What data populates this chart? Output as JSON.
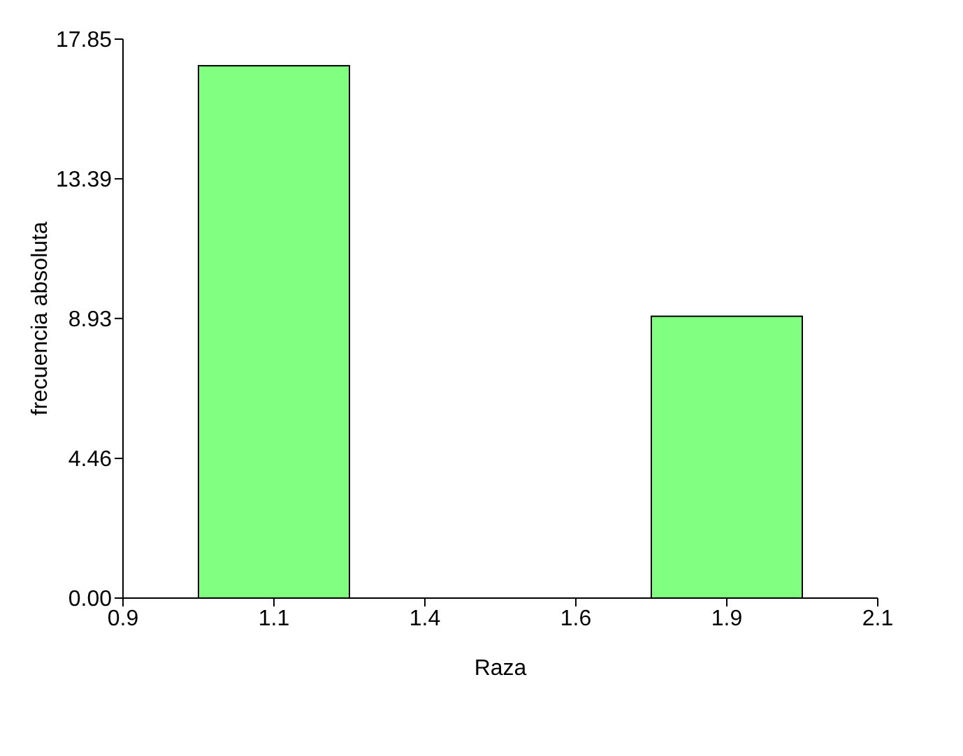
{
  "chart_data": {
    "type": "histogram",
    "xlabel": "Raza",
    "ylabel": "frecuencia absoluta",
    "bins": [
      1.02,
      1.26,
      1.5,
      1.74,
      1.98
    ],
    "values": [
      17,
      0,
      0,
      9
    ],
    "color": "#80ff80",
    "xlim": [
      0.9,
      2.1
    ],
    "xticks": [
      0.9,
      {
        "value": 1.14,
        "label": "1.1"
      },
      {
        "value": 1.38,
        "label": "1.4"
      },
      {
        "value": 1.62,
        "label": "1.6"
      },
      {
        "value": 1.86,
        "label": "1.9"
      },
      2.1
    ],
    "ylim": [
      0,
      17.85
    ],
    "yticks": [
      {
        "value": 0,
        "label": "0.00"
      },
      4.46,
      8.93,
      13.39,
      17.85
    ],
    "grid": false,
    "legend": false
  }
}
